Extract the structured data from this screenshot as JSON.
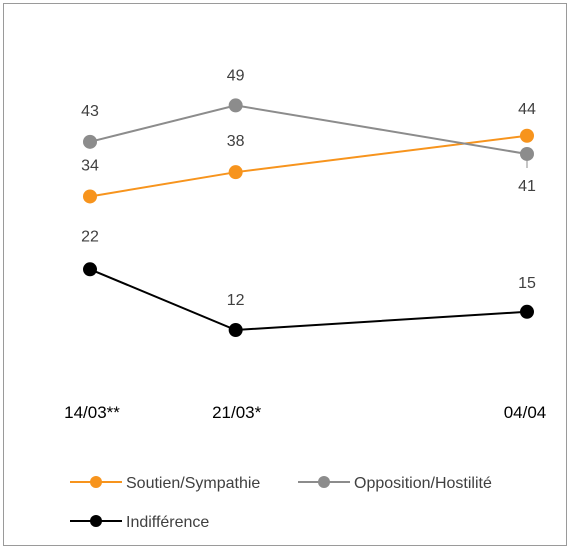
{
  "chart_data": {
    "type": "line",
    "categories": [
      "14/03**",
      "21/03*",
      "04/04"
    ],
    "x_positions": [
      0,
      1,
      3
    ],
    "series": [
      {
        "name": "Soutien/Sympathie",
        "values": [
          34,
          38,
          44
        ],
        "color": "#f7941d"
      },
      {
        "name": "Opposition/Hostilité",
        "values": [
          43,
          49,
          41
        ],
        "color": "#8c8c8c"
      },
      {
        "name": "Indifférence",
        "values": [
          22,
          12,
          15
        ],
        "color": "#000000"
      }
    ],
    "title": "",
    "xlabel": "",
    "ylabel": "",
    "ylim": [
      0,
      55
    ],
    "grid": false,
    "legend": "bottom"
  }
}
